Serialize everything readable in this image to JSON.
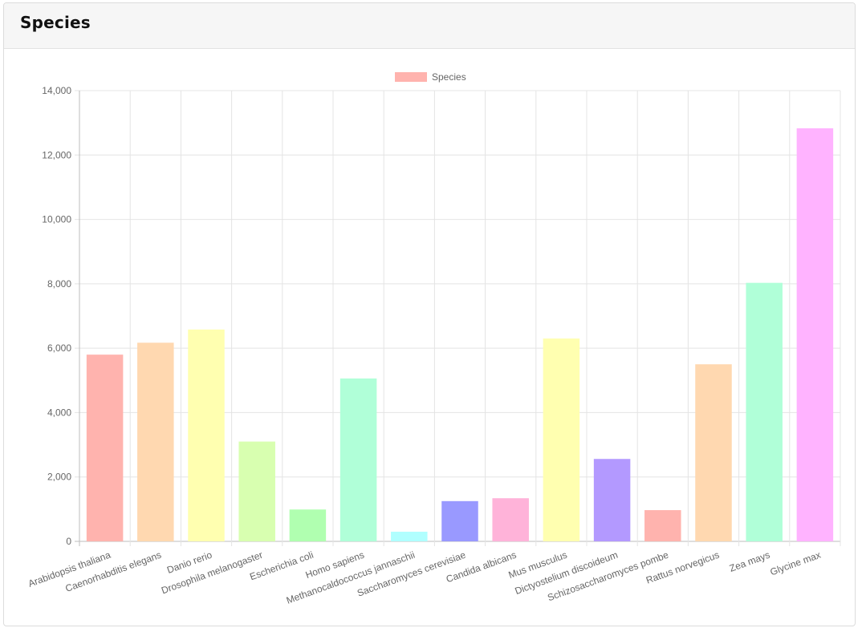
{
  "card": {
    "title": "Species"
  },
  "chart_data": {
    "type": "bar",
    "legend": {
      "label": "Species",
      "color": "#ffb3ae",
      "position": "top"
    },
    "categories": [
      "Arabidopsis thaliana",
      "Caenorhabditis elegans",
      "Danio rerio",
      "Drosophila melanogaster",
      "Escherichia coli",
      "Homo sapiens",
      "Methanocaldococcus jannaschii",
      "Saccharomyces cerevisiae",
      "Candida albicans",
      "Mus musculus",
      "Dictyostelium discoideum",
      "Schizosaccharomyces pombe",
      "Rattus norvegicus",
      "Zea mays",
      "Glycine max"
    ],
    "values": [
      5800,
      6170,
      6580,
      3100,
      990,
      5060,
      300,
      1250,
      1340,
      6300,
      2560,
      970,
      5500,
      8030,
      12830
    ],
    "colors": [
      "#ffb3ae",
      "#ffd8b0",
      "#ffffb0",
      "#d8ffb0",
      "#b0ffb0",
      "#b0ffd8",
      "#b0ffff",
      "#9999ff",
      "#ffb3d9",
      "#ffffb0",
      "#b399ff",
      "#ffb3ae",
      "#ffd8b0",
      "#b0ffd8",
      "#ffb3ff"
    ],
    "ylim": [
      0,
      14000
    ],
    "yticks": [
      0,
      2000,
      4000,
      6000,
      8000,
      10000,
      12000,
      14000
    ],
    "ytick_labels": [
      "0",
      "2,000",
      "4,000",
      "6,000",
      "8,000",
      "10,000",
      "12,000",
      "14,000"
    ],
    "grid": true
  }
}
